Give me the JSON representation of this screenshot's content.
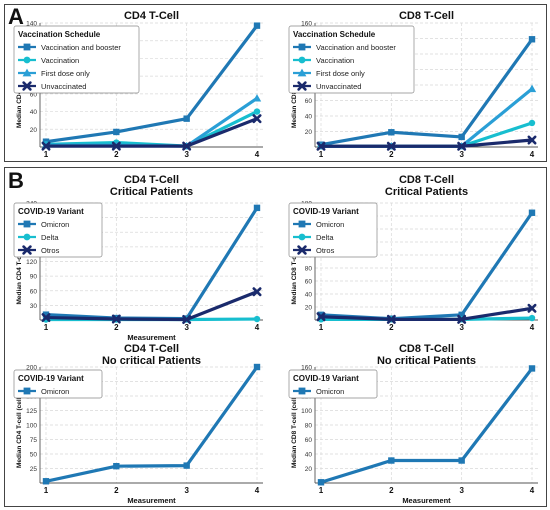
{
  "panels": [
    {
      "letter": "A"
    },
    {
      "letter": "B"
    }
  ],
  "chart_data": [
    {
      "type": "line",
      "title": "CD4 T-Cell",
      "xlabel": "",
      "ylabel": "Median CD4 T-cell (cells/μL)",
      "x": [
        1,
        2,
        3,
        4
      ],
      "xticks": [
        "1",
        "2",
        "3",
        "4"
      ],
      "ylim": [
        0,
        140
      ],
      "yticks": [
        20,
        40,
        60,
        80,
        100,
        120,
        140
      ],
      "grid": true,
      "legend_title": "Vaccination Schedule",
      "legend_position": "top-left",
      "series": [
        {
          "name": "Vaccination and booster",
          "marker": "square",
          "color": "#1f78b4",
          "values": [
            6,
            17,
            32,
            137
          ]
        },
        {
          "name": "Vaccination",
          "marker": "circle",
          "color": "#17becf",
          "values": [
            3,
            5,
            1,
            40
          ]
        },
        {
          "name": "First dose only",
          "marker": "triangle",
          "color": "#2a9fd6",
          "values": [
            2,
            2,
            1,
            55
          ]
        },
        {
          "name": "Unvaccinated",
          "marker": "x",
          "color": "#1a2a6c",
          "values": [
            1,
            1,
            1,
            32
          ]
        }
      ]
    },
    {
      "type": "line",
      "title": "CD8 T-Cell",
      "xlabel": "",
      "ylabel": "Median CD8 T-cell (cells/μL)",
      "x": [
        1,
        2,
        3,
        4
      ],
      "xticks": [
        "1",
        "2",
        "3",
        "4"
      ],
      "ylim": [
        0,
        160
      ],
      "yticks": [
        20,
        40,
        60,
        80,
        100,
        120,
        140,
        160
      ],
      "grid": true,
      "legend_title": "Vaccination Schedule",
      "legend_position": "top-left",
      "series": [
        {
          "name": "Vaccination and booster",
          "marker": "square",
          "color": "#1f78b4",
          "values": [
            3,
            19,
            13,
            139
          ]
        },
        {
          "name": "Vaccination",
          "marker": "circle",
          "color": "#17becf",
          "values": [
            1,
            1,
            1,
            31
          ]
        },
        {
          "name": "First dose only",
          "marker": "triangle",
          "color": "#2a9fd6",
          "values": [
            1,
            1,
            1,
            75
          ]
        },
        {
          "name": "Unvaccinated",
          "marker": "x",
          "color": "#1a2a6c",
          "values": [
            1,
            1,
            1,
            9
          ]
        }
      ]
    },
    {
      "type": "line",
      "title": "CD4 T-Cell",
      "subtitle": "Critical Patients",
      "xlabel": "Measurement",
      "ylabel": "Median CD4 T-cell (cells/μL)",
      "x": [
        1,
        2,
        3,
        4
      ],
      "xticks": [
        "1",
        "2",
        "3",
        "4"
      ],
      "ylim": [
        0,
        240
      ],
      "yticks": [
        30,
        60,
        90,
        120,
        150,
        180,
        210,
        240
      ],
      "grid": true,
      "legend_title": "COVID-19 Variant",
      "legend_position": "top-left",
      "series": [
        {
          "name": "Omicron",
          "marker": "square",
          "color": "#1f78b4",
          "values": [
            11,
            4,
            3,
            230
          ]
        },
        {
          "name": "Delta",
          "marker": "circle",
          "color": "#17becf",
          "values": [
            1,
            1,
            1,
            2
          ]
        },
        {
          "name": "Otros",
          "marker": "x",
          "color": "#1a2a6c",
          "values": [
            5,
            2,
            1,
            58
          ]
        }
      ]
    },
    {
      "type": "line",
      "title": "CD8 T-Cell",
      "subtitle": "Critical Patients",
      "xlabel": "",
      "ylabel": "Median CD8 T-cell (cells/μL)",
      "x": [
        1,
        2,
        3,
        4
      ],
      "xticks": [
        "1",
        "2",
        "3",
        "4"
      ],
      "ylim": [
        0,
        180
      ],
      "yticks": [
        20,
        40,
        60,
        80,
        100,
        120,
        140,
        160,
        180
      ],
      "grid": true,
      "legend_title": "COVID-19 Variant",
      "legend_position": "top-left",
      "series": [
        {
          "name": "Omicron",
          "marker": "square",
          "color": "#1f78b4",
          "values": [
            8,
            2,
            8,
            165
          ]
        },
        {
          "name": "Delta",
          "marker": "circle",
          "color": "#17becf",
          "values": [
            1,
            1,
            1,
            3
          ]
        },
        {
          "name": "Otros",
          "marker": "x",
          "color": "#1a2a6c",
          "values": [
            5,
            1,
            1,
            18
          ]
        }
      ]
    },
    {
      "type": "line",
      "title": "CD4 T-Cell",
      "subtitle": "No critical Patients",
      "xlabel": "Measurement",
      "ylabel": "Median CD4 T-cell (cells/μL)",
      "x": [
        1,
        2,
        3,
        4
      ],
      "xticks": [
        "1",
        "2",
        "3",
        "4"
      ],
      "ylim": [
        0,
        200
      ],
      "yticks": [
        25,
        50,
        75,
        100,
        125,
        150,
        175,
        200
      ],
      "grid": true,
      "legend_title": "COVID-19 Variant",
      "legend_position": "top-left",
      "series": [
        {
          "name": "Omicron",
          "marker": "square",
          "color": "#1f78b4",
          "values": [
            3,
            29,
            30,
            200
          ]
        }
      ]
    },
    {
      "type": "line",
      "title": "CD8 T-Cell",
      "subtitle": "No critical Patients",
      "xlabel": "Measurement",
      "ylabel": "Median CD8 T-cell (cells/μL)",
      "x": [
        1,
        2,
        3,
        4
      ],
      "xticks": [
        "1",
        "2",
        "3",
        "4"
      ],
      "ylim": [
        0,
        160
      ],
      "yticks": [
        20,
        40,
        60,
        80,
        100,
        120,
        140,
        160
      ],
      "grid": true,
      "legend_title": "COVID-19 Variant",
      "legend_position": "top-left",
      "series": [
        {
          "name": "Omicron",
          "marker": "square",
          "color": "#1f78b4",
          "values": [
            1,
            31,
            31,
            158
          ]
        }
      ]
    }
  ]
}
